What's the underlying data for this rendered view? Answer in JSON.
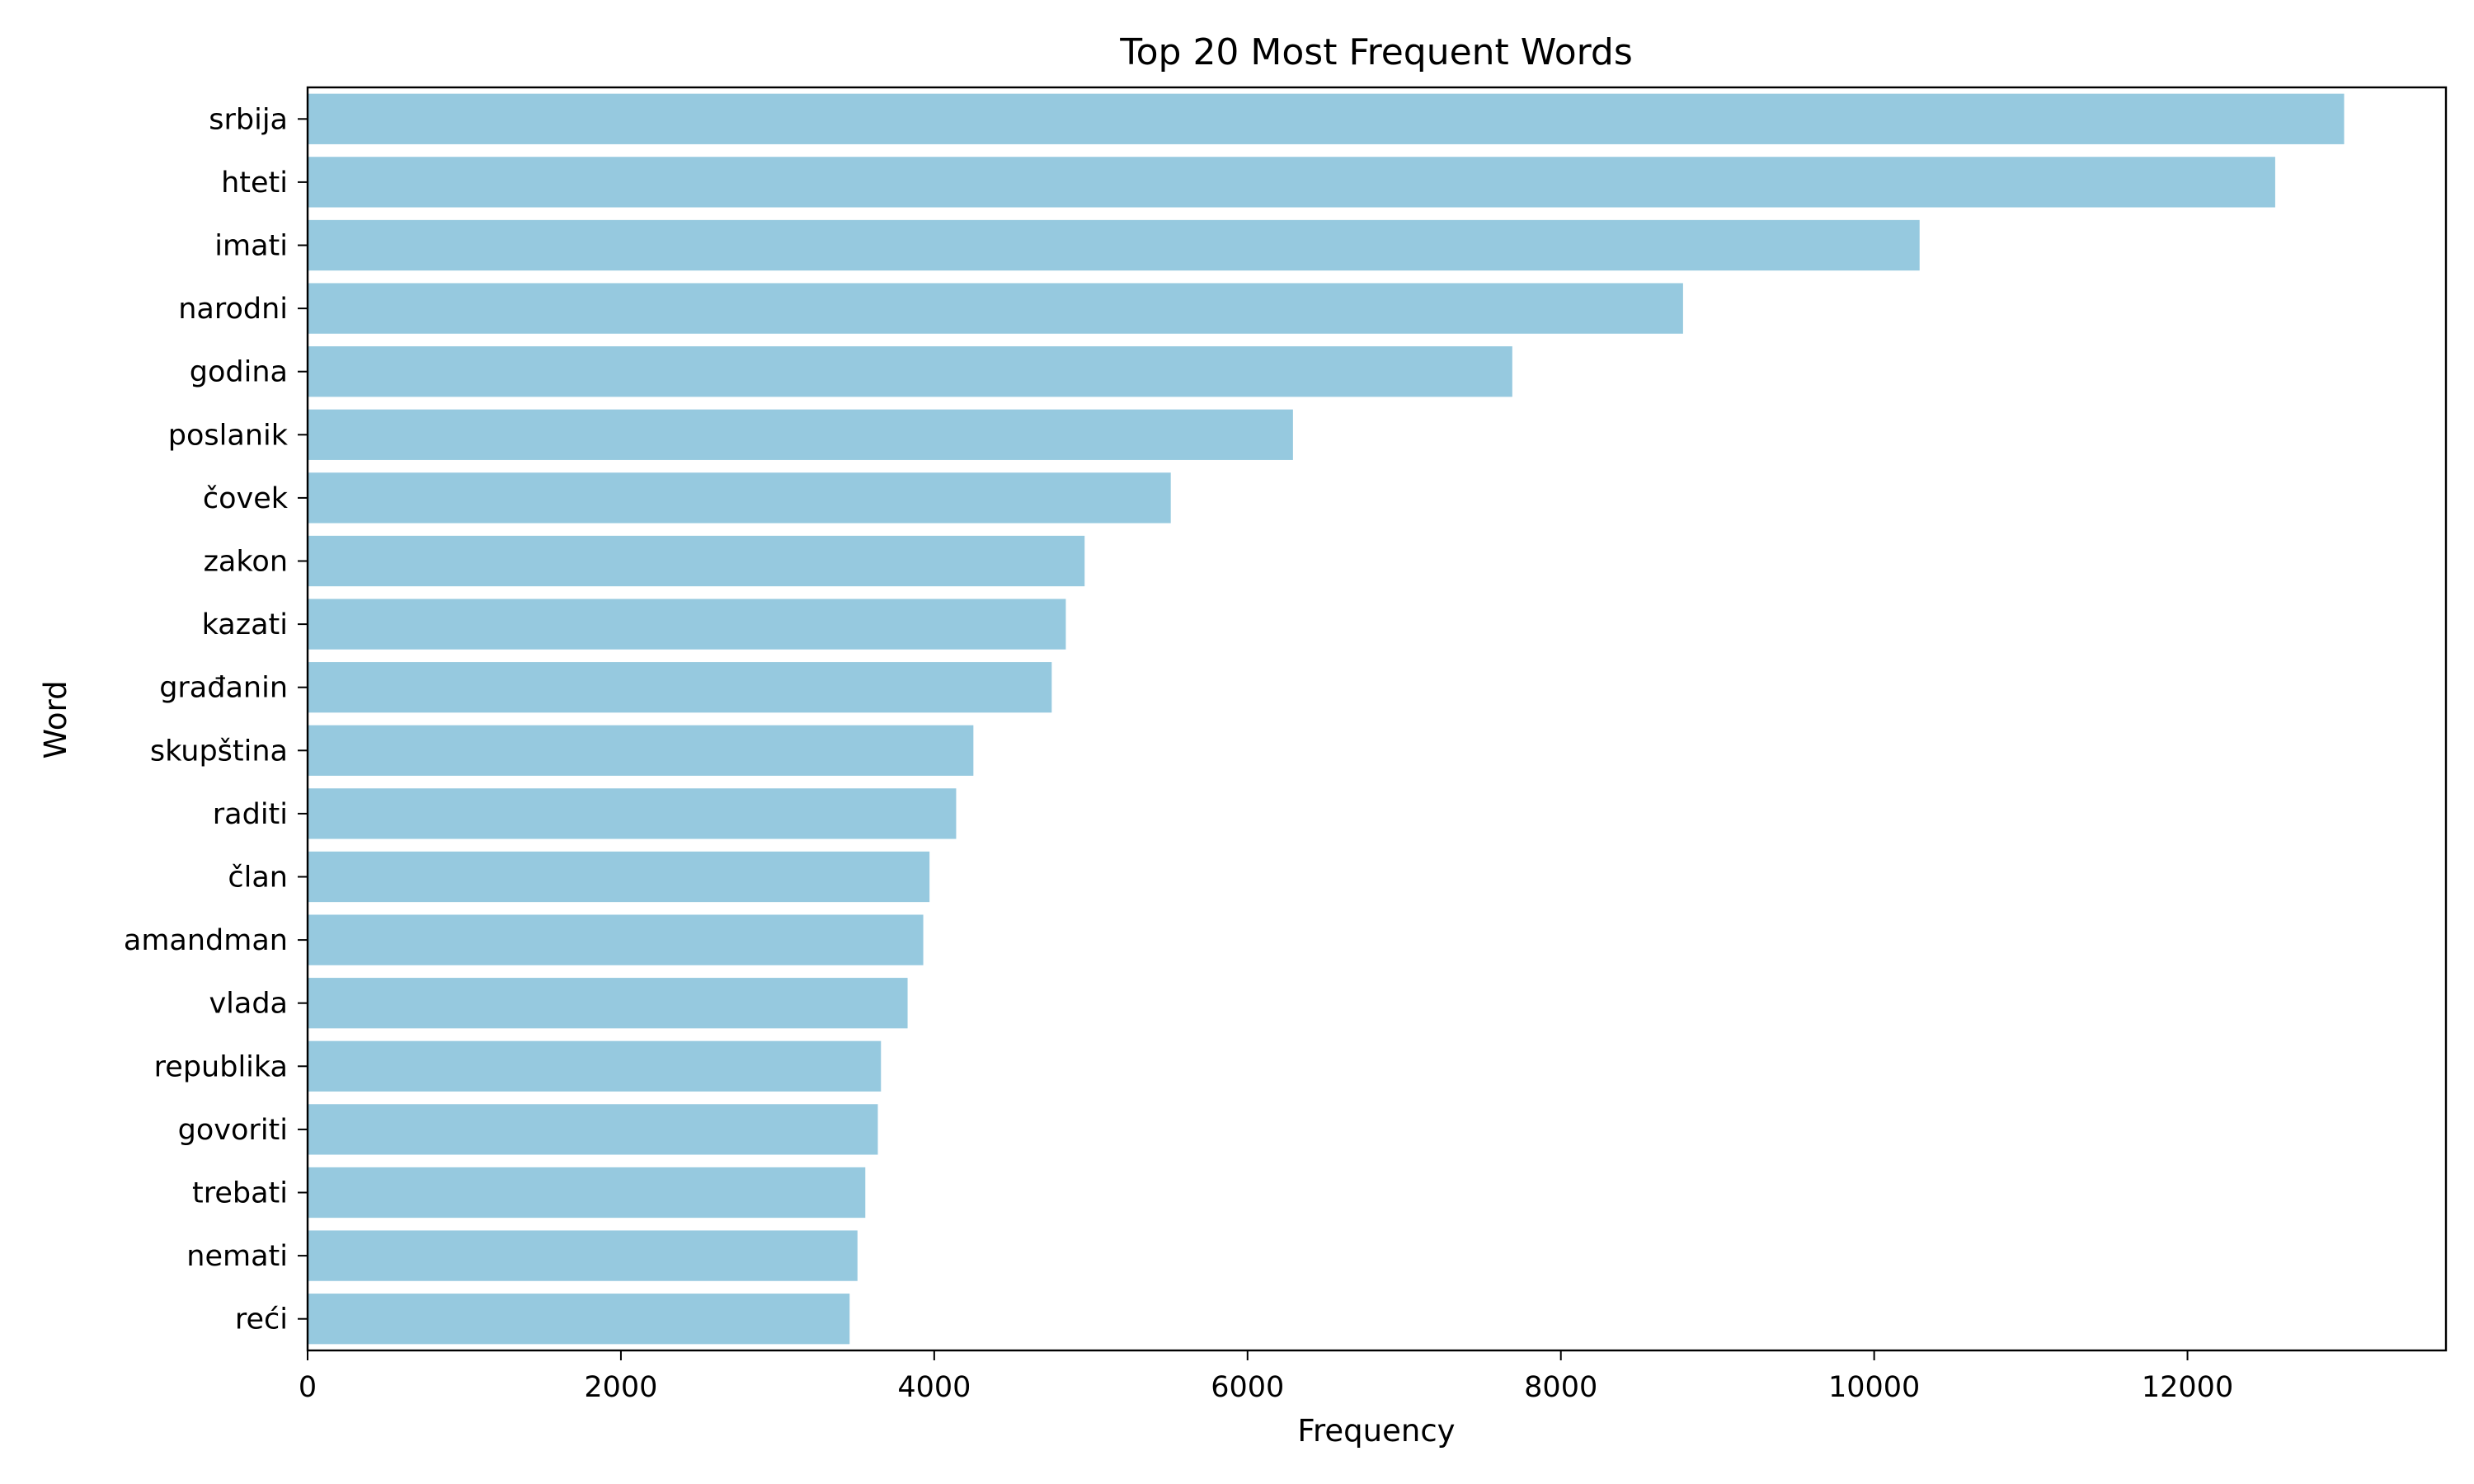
{
  "chart_data": {
    "type": "bar",
    "orientation": "horizontal",
    "title": "Top 20 Most Frequent Words",
    "xlabel": "Frequency",
    "ylabel": "Word",
    "categories": [
      "srbija",
      "hteti",
      "imati",
      "narodni",
      "godina",
      "poslanik",
      "čovek",
      "zakon",
      "kazati",
      "građanin",
      "skupština",
      "raditi",
      "član",
      "amandman",
      "vlada",
      "republika",
      "govoriti",
      "trebati",
      "nemati",
      "reći"
    ],
    "values": [
      13000,
      12560,
      10290,
      8780,
      7690,
      6290,
      5510,
      4960,
      4840,
      4750,
      4250,
      4140,
      3970,
      3930,
      3830,
      3660,
      3640,
      3560,
      3510,
      3460
    ],
    "xlim": [
      0,
      13650
    ],
    "xticks": [
      0,
      2000,
      4000,
      6000,
      8000,
      10000,
      12000
    ],
    "bar_color": "#96c9df",
    "grid": false,
    "legend": "none"
  }
}
